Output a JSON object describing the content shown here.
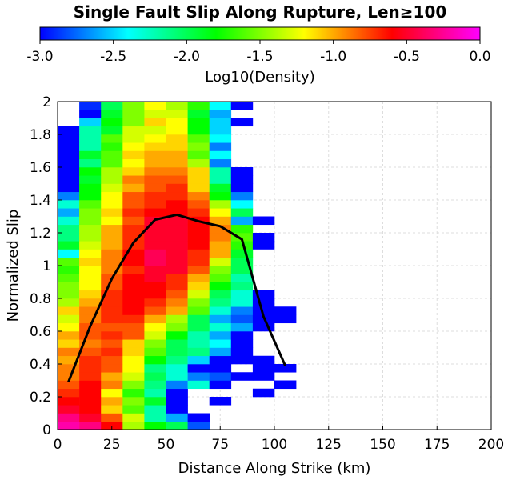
{
  "chart_data": {
    "type": "heatmap",
    "title": "Single Fault Slip Along Rupture, Len≥100",
    "xlabel": "Distance Along Strike (km)",
    "ylabel": "Normalized Slip",
    "xlim": [
      0,
      200
    ],
    "ylim": [
      0,
      2
    ],
    "x_ticks": [
      "0",
      "25",
      "50",
      "75",
      "100",
      "125",
      "150",
      "175",
      "200"
    ],
    "y_ticks": [
      "0",
      "0.2",
      "0.4",
      "0.6",
      "0.8",
      "1",
      "1.2",
      "1.4",
      "1.6",
      "1.8",
      "2"
    ],
    "grid": true,
    "colorbar": {
      "label": "Log10(Density)",
      "min": -3.0,
      "max": 0.0,
      "ticks": [
        "-3.0",
        "-2.5",
        "-2.0",
        "-1.5",
        "-1.0",
        "-0.5",
        "0.0"
      ],
      "position": "top",
      "stops": [
        "#0000ff",
        "#00ffff",
        "#00ff00",
        "#ffff00",
        "#ff0000",
        "#ff00ff"
      ]
    },
    "bin_width_x": 10,
    "bin_height_y": 0.05,
    "x_bins": [
      5,
      15,
      25,
      35,
      45,
      55,
      65,
      75,
      85,
      95,
      105
    ],
    "cells_by_row": [
      [
        -0.2,
        -0.3,
        -0.6,
        -1.4,
        -1.8,
        -2.0,
        -2.8,
        null,
        null,
        null,
        null
      ],
      [
        -0.3,
        -0.5,
        -0.8,
        -1.3,
        -2.2,
        -2.6,
        -3.0,
        null,
        null,
        null,
        null
      ],
      [
        -0.5,
        -0.6,
        -1.1,
        -1.6,
        -2.2,
        -3.0,
        null,
        null,
        null,
        null,
        null
      ],
      [
        -0.6,
        -0.6,
        -1.0,
        -1.5,
        -1.9,
        -3.0,
        null,
        -3.0,
        null,
        null,
        null
      ],
      [
        -0.7,
        -0.6,
        -1.2,
        -1.7,
        -2.2,
        -3.0,
        null,
        null,
        null,
        -3.0,
        null
      ],
      [
        -0.8,
        -0.6,
        -0.9,
        -1.5,
        -2.1,
        -2.7,
        -2.3,
        -3.0,
        null,
        null,
        -3.0
      ],
      [
        -0.9,
        -0.7,
        -1.0,
        -1.3,
        -2.0,
        -2.3,
        -2.7,
        -2.8,
        -3.0,
        -3.0,
        null
      ],
      [
        -0.9,
        -0.7,
        -0.8,
        -1.2,
        -2.1,
        -2.3,
        -3.0,
        -3.0,
        null,
        -3.0,
        -3.0
      ],
      [
        -1.0,
        -0.7,
        -0.8,
        -1.2,
        -1.8,
        -2.1,
        -2.5,
        -3.0,
        -3.0,
        -3.0,
        null
      ],
      [
        -0.9,
        -0.8,
        -0.7,
        -1.1,
        -1.6,
        -2.0,
        -2.1,
        -2.6,
        -3.0,
        null,
        null
      ],
      [
        -1.1,
        -0.9,
        -0.8,
        -1.1,
        -1.5,
        -2.0,
        -2.2,
        -2.4,
        -3.0,
        null,
        null
      ],
      [
        -1.0,
        -0.8,
        -0.7,
        -0.8,
        -1.3,
        -1.8,
        -2.2,
        -2.6,
        -3.0,
        null,
        null
      ],
      [
        -1.2,
        -0.8,
        -0.8,
        -0.8,
        -1.2,
        -1.5,
        -2.0,
        -2.3,
        -2.6,
        -3.0,
        null
      ],
      [
        -1.3,
        -0.9,
        -0.7,
        -0.7,
        -1.0,
        -1.4,
        -2.0,
        -2.6,
        -2.8,
        -3.0,
        -3.0
      ],
      [
        -1.1,
        -0.9,
        -0.7,
        -0.6,
        -0.8,
        -1.0,
        -1.6,
        -2.3,
        -2.7,
        -3.0,
        -3.0
      ],
      [
        -1.4,
        -1.0,
        -0.7,
        -0.6,
        -0.7,
        -0.9,
        -1.5,
        -2.1,
        -2.3,
        -3.0,
        null
      ],
      [
        -1.5,
        -1.1,
        -0.7,
        -0.6,
        -0.6,
        -0.8,
        -1.3,
        -2.0,
        -2.3,
        -3.0,
        null
      ],
      [
        -1.5,
        -1.2,
        -0.8,
        -0.6,
        -0.6,
        -0.7,
        -1.1,
        -1.8,
        -2.1,
        null,
        null
      ],
      [
        -1.6,
        -1.2,
        -0.8,
        -0.6,
        -0.5,
        -0.7,
        -1.0,
        -1.6,
        -2.2,
        null,
        null
      ],
      [
        -1.7,
        -1.2,
        -0.9,
        -0.7,
        -0.5,
        -0.5,
        -0.8,
        -1.5,
        -2.0,
        null,
        null
      ],
      [
        -1.6,
        -1.1,
        -0.9,
        -0.6,
        -0.4,
        -0.5,
        -0.7,
        -1.3,
        -2.0,
        null,
        null
      ],
      [
        -2.4,
        -1.2,
        -0.9,
        -0.6,
        -0.4,
        -0.5,
        -0.7,
        -1.0,
        -1.9,
        null,
        null
      ],
      [
        -1.9,
        -1.3,
        -1.0,
        -0.7,
        -0.5,
        -0.5,
        -0.6,
        -1.0,
        -1.7,
        -3.0,
        null
      ],
      [
        -2.1,
        -1.4,
        -1.0,
        -0.7,
        -0.5,
        -0.5,
        -0.6,
        -0.9,
        -1.6,
        -3.0,
        null
      ],
      [
        -2.1,
        -1.4,
        -1.0,
        -0.7,
        -0.5,
        -0.5,
        -0.6,
        -0.9,
        -1.7,
        null,
        null
      ],
      [
        -2.3,
        -1.5,
        -1.2,
        -0.8,
        -0.5,
        -0.5,
        -0.6,
        -1.0,
        -2.6,
        -3.0,
        null
      ],
      [
        -2.6,
        -1.5,
        -1.1,
        -0.7,
        -0.6,
        -0.6,
        -0.7,
        -1.2,
        -2.0,
        null,
        null
      ],
      [
        -2.3,
        -1.6,
        -1.2,
        -0.8,
        -0.7,
        -0.6,
        -0.8,
        -1.4,
        -2.4,
        null,
        null
      ],
      [
        -2.7,
        -1.8,
        -1.2,
        -0.8,
        -0.7,
        -0.7,
        -0.9,
        -1.8,
        -2.7,
        null,
        null
      ],
      [
        -3.0,
        -1.8,
        -1.3,
        -1.0,
        -0.8,
        -0.7,
        -1.1,
        -1.9,
        -3.0,
        null,
        null
      ],
      [
        -3.0,
        -1.9,
        -1.4,
        -0.9,
        -0.8,
        -0.8,
        -1.1,
        -2.2,
        -3.0,
        null,
        null
      ],
      [
        -3.0,
        -1.8,
        -1.4,
        -1.1,
        -0.9,
        -0.9,
        -1.1,
        -2.2,
        -3.0,
        null,
        null
      ],
      [
        -3.0,
        -2.1,
        -1.6,
        -1.2,
        -1.0,
        -1.0,
        -1.4,
        -2.7,
        null,
        null,
        null
      ],
      [
        -3.0,
        -1.9,
        -1.6,
        -1.1,
        -1.0,
        -1.0,
        -1.6,
        -2.4,
        null,
        null,
        null
      ],
      [
        -3.0,
        -2.2,
        -1.7,
        -1.2,
        -1.1,
        -1.1,
        -1.5,
        -2.7,
        null,
        null,
        null
      ],
      [
        -3.0,
        -2.2,
        -1.6,
        -1.3,
        -1.2,
        -1.1,
        -1.6,
        -2.4,
        null,
        null,
        null
      ],
      [
        -3.0,
        -2.2,
        -1.9,
        -1.3,
        -1.3,
        -1.2,
        -1.8,
        -2.5,
        null,
        null,
        null
      ],
      [
        null,
        -2.5,
        -1.8,
        -1.5,
        -1.1,
        -1.2,
        -1.8,
        -2.5,
        -3.0,
        null,
        null
      ],
      [
        null,
        -3.0,
        -1.9,
        -1.5,
        -1.3,
        -1.3,
        -1.9,
        -2.6,
        null,
        null,
        null
      ],
      [
        null,
        -2.9,
        -2.0,
        -1.5,
        -1.2,
        -1.4,
        -1.7,
        -2.4,
        -3.0,
        null,
        null
      ]
    ],
    "series": [
      {
        "x": [
          5,
          15,
          25,
          35,
          45,
          55,
          65,
          75,
          85,
          95,
          105
        ],
        "y": [
          0.29,
          0.63,
          0.92,
          1.14,
          1.28,
          1.31,
          1.27,
          1.24,
          1.16,
          0.69,
          0.39
        ],
        "color": "#000000"
      }
    ]
  }
}
